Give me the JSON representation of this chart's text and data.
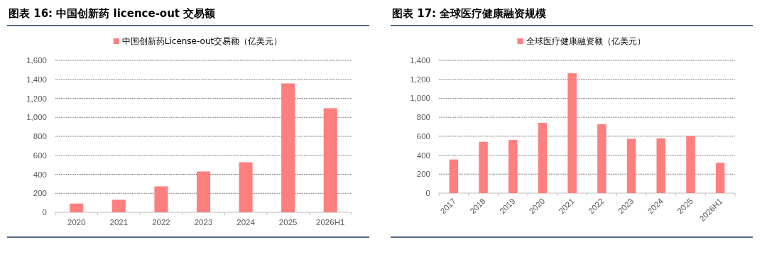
{
  "chart_data": [
    {
      "type": "bar",
      "title": "图表 16:  中国创新药 licence-out 交易额",
      "categories": [
        "2020",
        "2021",
        "2022",
        "2023",
        "2024",
        "2025",
        "2026H1"
      ],
      "series": [
        {
          "name": "中国创新药License-out交易额（亿美元）",
          "color": "#ff7f7f",
          "values": [
            92,
            132,
            273,
            430,
            527,
            1357,
            1096
          ]
        }
      ],
      "ylim": [
        0,
        1600
      ],
      "yticks": [
        0,
        200,
        400,
        600,
        800,
        {
          "value": 1000,
          "label": "1,000"
        },
        {
          "value": 1200,
          "label": "1,200"
        },
        {
          "value": 1400,
          "label": "1,400"
        },
        {
          "value": 1600,
          "label": "1,600"
        }
      ],
      "grid": "y",
      "legend": "top"
    },
    {
      "type": "bar",
      "title": "图表 17:  全球医疗健康融资规模",
      "categories": [
        "2017",
        "2018",
        "2019",
        "2020",
        "2021",
        "2022",
        "2023",
        "2024",
        "2025",
        "2026H1"
      ],
      "series": [
        {
          "name": "全球医疗健康融资额（亿美元）",
          "color": "#ff7f7f",
          "values": [
            355,
            541,
            561,
            741,
            1264,
            726,
            573,
            578,
            601,
            320
          ]
        }
      ],
      "ylim": [
        0,
        1400
      ],
      "yticks": [
        0,
        200,
        400,
        600,
        800,
        {
          "value": 1000,
          "label": "1,000"
        },
        {
          "value": 1200,
          "label": "1,200"
        },
        {
          "value": 1400,
          "label": "1,400"
        }
      ],
      "grid": "y",
      "legend": "top"
    }
  ]
}
